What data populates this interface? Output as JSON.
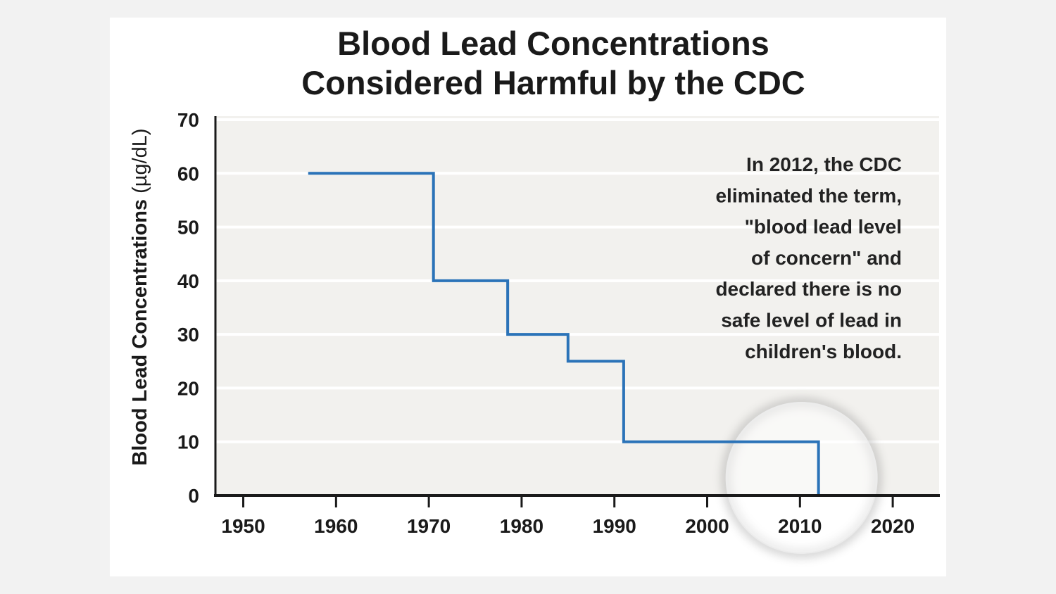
{
  "chart_data": {
    "type": "line",
    "step": "post",
    "title_lines": [
      "Blood Lead Concentrations",
      "Considered Harmful by the CDC"
    ],
    "ylabel_main": "Blood Lead Concentrations",
    "ylabel_unit": "(µg/dL)",
    "xlabel": "",
    "xlim": [
      1947,
      2025
    ],
    "ylim": [
      0,
      70
    ],
    "xticks": [
      1950,
      1960,
      1970,
      1980,
      1990,
      2000,
      2010,
      2020
    ],
    "yticks": [
      0,
      10,
      20,
      30,
      40,
      50,
      60,
      70
    ],
    "grid": "horizontal",
    "series": [
      {
        "color": "#2b73b8",
        "x": [
          1957,
          1970.5,
          1978.5,
          1985,
          1991,
          2012
        ],
        "y": [
          60,
          40,
          30,
          25,
          10,
          0
        ]
      }
    ],
    "annotation": [
      "In 2012, the CDC",
      "eliminated the term,",
      "\"blood lead level",
      "of concern\" and",
      "declared there is no",
      "safe level of lead in",
      "children's blood."
    ],
    "highlight": {
      "x": 2012,
      "y": 0
    }
  }
}
